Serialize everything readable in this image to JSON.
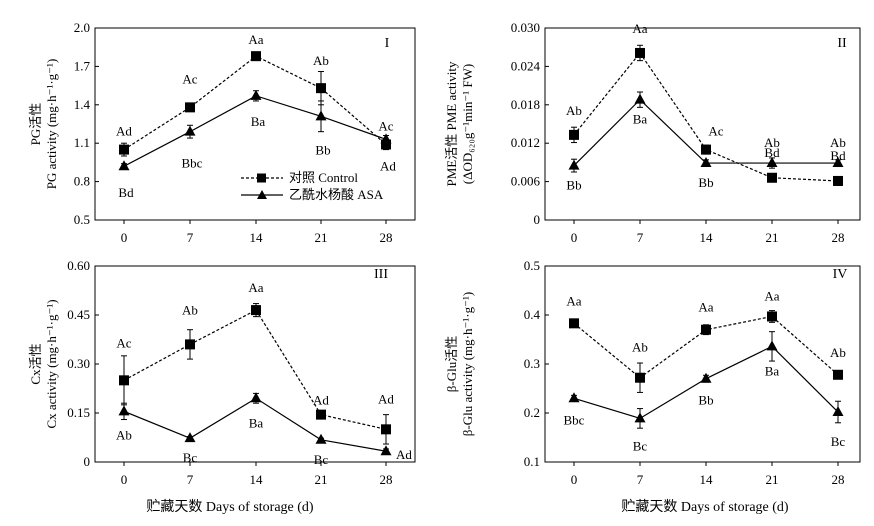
{
  "xlabel": "贮藏天数 Days of storage (d)",
  "legend": [
    {
      "label": "对照 Control",
      "line": "dashed",
      "marker": "square"
    },
    {
      "label": "乙酰水杨酸 ASA",
      "line": "solid",
      "marker": "triangle"
    }
  ],
  "chart_data": [
    {
      "type": "line",
      "panel": "I",
      "ylabel": [
        "PG活性",
        "PG activity (mg·h⁻¹·g⁻¹)"
      ],
      "x": [
        0,
        7,
        14,
        21,
        28
      ],
      "xticks": [
        "0",
        "7",
        "14",
        "21",
        "28"
      ],
      "ylim": [
        0.5,
        2.0
      ],
      "yticks": [
        "0.5",
        "0.8",
        "1.1",
        "1.4",
        "1.7",
        "2.0"
      ],
      "series": [
        {
          "name": "对照 Control",
          "values": [
            1.05,
            1.38,
            1.78,
            1.53,
            1.09
          ],
          "err": [
            0.05,
            0.02,
            0.03,
            0.13,
            0.04
          ],
          "labels": [
            "Ad",
            "Ac",
            "Aa",
            "Ab",
            "Ac"
          ]
        },
        {
          "name": "乙酰水杨酸 ASA",
          "values": [
            0.92,
            1.19,
            1.47,
            1.31,
            1.13
          ],
          "err": [
            0.02,
            0.05,
            0.04,
            0.12,
            0.03
          ],
          "labels": [
            "Bd",
            "Bbc",
            "Ba",
            "Bb",
            "Ad"
          ]
        }
      ]
    },
    {
      "type": "line",
      "panel": "II",
      "ylabel": [
        "PME活性 PME activity",
        "(ΔOD₆₂₀g⁻¹min⁻¹ FW)"
      ],
      "x": [
        0,
        7,
        14,
        21,
        28
      ],
      "xticks": [
        "0",
        "7",
        "14",
        "21",
        "28"
      ],
      "ylim": [
        0,
        0.03
      ],
      "yticks": [
        "0",
        "0.006",
        "0.012",
        "0.018",
        "0.024",
        "0.030"
      ],
      "series": [
        {
          "name": "对照 Control",
          "values": [
            0.0133,
            0.0261,
            0.011,
            0.0066,
            0.0061
          ],
          "err": [
            0.0012,
            0.0012,
            0.0007,
            0.0002,
            0.0007
          ],
          "labels": [
            "Ab",
            "Aa",
            "Ac",
            "Bd",
            "Bd"
          ]
        },
        {
          "name": "乙酰水杨酸 ASA",
          "values": [
            0.0085,
            0.0188,
            0.0089,
            0.0089,
            0.0089
          ],
          "err": [
            0.001,
            0.0012,
            0.0005,
            0.0008,
            0.0005
          ],
          "labels": [
            "Bb",
            "Ba",
            "Bb",
            "Ab",
            "Ab"
          ]
        }
      ]
    },
    {
      "type": "line",
      "panel": "III",
      "ylabel": [
        "Cx活性",
        "Cx activity (mg·h⁻¹·g⁻¹)"
      ],
      "x": [
        0,
        7,
        14,
        21,
        28
      ],
      "xticks": [
        "0",
        "7",
        "14",
        "21",
        "28"
      ],
      "ylim": [
        0,
        0.6
      ],
      "yticks": [
        "0",
        "0.15",
        "0.30",
        "0.45",
        "0.60"
      ],
      "series": [
        {
          "name": "对照 Control",
          "values": [
            0.25,
            0.36,
            0.465,
            0.145,
            0.1
          ],
          "err": [
            0.075,
            0.045,
            0.02,
            0.008,
            0.045
          ],
          "labels": [
            "Ac",
            "Ab",
            "Aa",
            "Ad",
            "Ad"
          ]
        },
        {
          "name": "乙酰水杨酸 ASA",
          "values": [
            0.155,
            0.073,
            0.195,
            0.068,
            0.033
          ],
          "err": [
            0.025,
            0.005,
            0.015,
            0.005,
            0.007
          ],
          "labels": [
            "Ab",
            "Bc",
            "Ba",
            "Bc",
            "Ad"
          ]
        }
      ]
    },
    {
      "type": "line",
      "panel": "IV",
      "ylabel": [
        "β-Glu活性",
        "β-Glu activity (mg·h⁻¹·g⁻¹)"
      ],
      "x": [
        0,
        7,
        14,
        21,
        28
      ],
      "xticks": [
        "0",
        "7",
        "14",
        "21",
        "28"
      ],
      "ylim": [
        0.1,
        0.5
      ],
      "yticks": [
        "0.1",
        "0.2",
        "0.3",
        "0.4",
        "0.5"
      ],
      "series": [
        {
          "name": "对照 Control",
          "values": [
            0.383,
            0.272,
            0.37,
            0.397,
            0.278
          ],
          "err": [
            0.006,
            0.03,
            0.01,
            0.012,
            0.006
          ],
          "labels": [
            "Aa",
            "Ab",
            "Aa",
            "Aa",
            "Ab"
          ]
        },
        {
          "name": "乙酰水杨酸 ASA",
          "values": [
            0.23,
            0.189,
            0.27,
            0.336,
            0.202
          ],
          "err": [
            0.006,
            0.02,
            0.007,
            0.03,
            0.022
          ],
          "labels": [
            "Bbc",
            "Bc",
            "Bb",
            "Ba",
            "Bc"
          ]
        }
      ]
    }
  ]
}
